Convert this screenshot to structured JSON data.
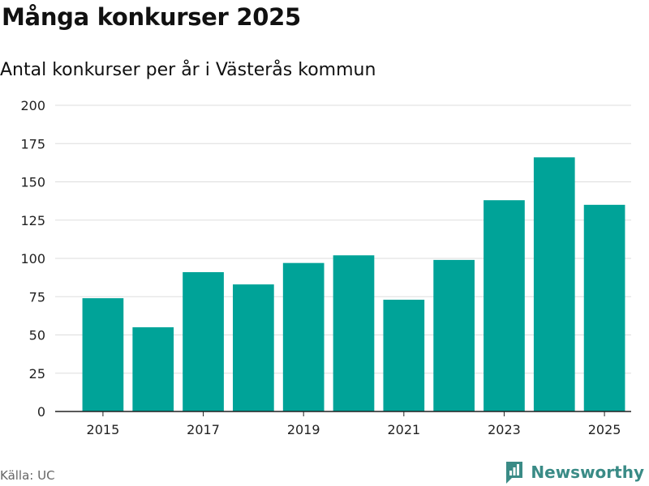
{
  "header": {
    "title": "Många konkurser 2025",
    "subtitle": "Antal konkurser per år i Västerås kommun"
  },
  "footer": {
    "source": "Källa: UC",
    "brand": "Newsworthy",
    "brand_icon": "newsworthy-logo-icon"
  },
  "colors": {
    "bar": "#00a398",
    "grid": "#dddddd",
    "axis": "#222222",
    "brand": "#3a8b86"
  },
  "chart_data": {
    "type": "bar",
    "title": "Många konkurser 2025",
    "subtitle": "Antal konkurser per år i Västerås kommun",
    "xlabel": "",
    "ylabel": "",
    "categories": [
      "2015",
      "2016",
      "2017",
      "2018",
      "2019",
      "2020",
      "2021",
      "2022",
      "2023",
      "2024",
      "2025"
    ],
    "values": [
      74,
      55,
      91,
      83,
      97,
      102,
      73,
      99,
      138,
      166,
      135
    ],
    "x_tick_labels": [
      "2015",
      "2017",
      "2019",
      "2021",
      "2023",
      "2025"
    ],
    "y_ticks": [
      "0",
      "25",
      "50",
      "75",
      "100",
      "125",
      "150",
      "175",
      "200"
    ],
    "ylim": [
      0,
      200
    ],
    "grid": true,
    "legend": "none"
  }
}
